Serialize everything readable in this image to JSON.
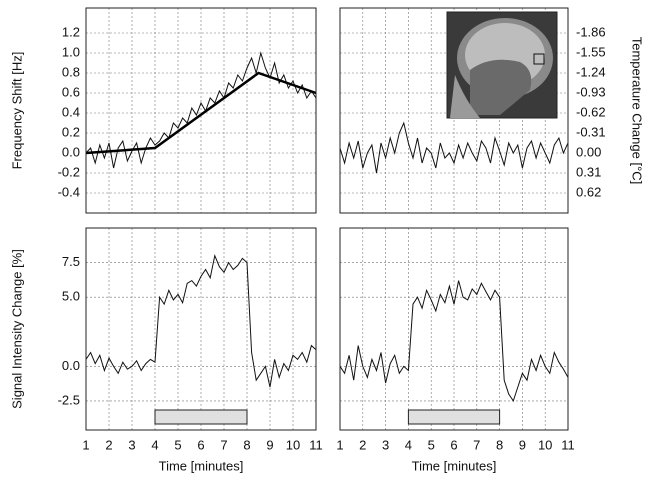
{
  "chart_data": [
    {
      "type": "line",
      "ylabel": "Frequency Shift [Hz]",
      "xtick_labels": false,
      "ytick_labels": true,
      "grid": true,
      "x": [
        1,
        1.2,
        1.4,
        1.6,
        1.8,
        2,
        2.2,
        2.4,
        2.6,
        2.8,
        3,
        3.2,
        3.4,
        3.6,
        3.8,
        4,
        4.2,
        4.4,
        4.6,
        4.8,
        5,
        5.2,
        5.4,
        5.6,
        5.8,
        6,
        6.2,
        6.4,
        6.6,
        6.8,
        7,
        7.2,
        7.4,
        7.6,
        7.8,
        8,
        8.2,
        8.4,
        8.6,
        8.8,
        9,
        9.2,
        9.4,
        9.6,
        9.8,
        10,
        10.2,
        10.4,
        10.6,
        10.8,
        11
      ],
      "series": [
        {
          "color": "#111111",
          "values": [
            0.0,
            0.05,
            -0.1,
            0.08,
            -0.05,
            0.1,
            -0.15,
            0.05,
            0.12,
            -0.08,
            0.02,
            0.1,
            -0.1,
            0.05,
            0.15,
            0.08,
            0.12,
            0.2,
            0.15,
            0.3,
            0.25,
            0.35,
            0.3,
            0.45,
            0.38,
            0.5,
            0.42,
            0.55,
            0.5,
            0.62,
            0.55,
            0.7,
            0.65,
            0.78,
            0.72,
            0.85,
            0.95,
            0.8,
            1.0,
            0.85,
            0.75,
            0.9,
            0.7,
            0.78,
            0.65,
            0.72,
            0.6,
            0.68,
            0.55,
            0.62,
            0.55
          ]
        },
        {
          "color": "#000000",
          "x": [
            1,
            4,
            8.5,
            11
          ],
          "values": [
            0,
            0.05,
            0.8,
            0.6
          ]
        }
      ],
      "xlim": [
        1,
        11
      ],
      "xticks": [
        1,
        2,
        3,
        4,
        5,
        6,
        7,
        8,
        9,
        10,
        11
      ],
      "ylim": [
        -0.6,
        1.45
      ],
      "yticks": [
        1.2,
        {
          "value": 1,
          "label": "1.0"
        },
        0.8,
        0.6,
        0.4,
        0.2,
        {
          "value": 0,
          "label": "0.0"
        },
        -0.2,
        -0.4
      ]
    },
    {
      "type": "line",
      "y2label": "Temperature Change [°C]",
      "xtick_labels": false,
      "grid": true,
      "x": [
        1,
        1.2,
        1.4,
        1.6,
        1.8,
        2,
        2.2,
        2.4,
        2.6,
        2.8,
        3,
        3.2,
        3.4,
        3.6,
        3.8,
        4,
        4.2,
        4.4,
        4.6,
        4.8,
        5,
        5.2,
        5.4,
        5.6,
        5.8,
        6,
        6.2,
        6.4,
        6.6,
        6.8,
        7,
        7.2,
        7.4,
        7.6,
        7.8,
        8,
        8.2,
        8.4,
        8.6,
        8.8,
        9,
        9.2,
        9.4,
        9.6,
        9.8,
        10,
        10.2,
        10.4,
        10.6,
        10.8,
        11
      ],
      "series": [
        {
          "color": "#111111",
          "values": [
            0.05,
            -0.1,
            0.1,
            -0.05,
            0.12,
            -0.15,
            0.0,
            0.08,
            -0.2,
            0.1,
            -0.05,
            0.15,
            0.0,
            0.2,
            0.3,
            0.1,
            -0.05,
            0.15,
            -0.1,
            0.05,
            0.0,
            -0.15,
            0.1,
            -0.05,
            0.0,
            -0.1,
            0.08,
            -0.05,
            0.1,
            0.0,
            -0.08,
            0.12,
            0.05,
            -0.1,
            0.15,
            0.02,
            -0.12,
            0.1,
            0.0,
            0.08,
            -0.15,
            0.05,
            0.12,
            -0.05,
            0.1,
            0.0,
            -0.1,
            0.08,
            0.15,
            0.0,
            0.1
          ]
        }
      ],
      "xlim": [
        1,
        11
      ],
      "xticks": [
        1,
        2,
        3,
        4,
        5,
        6,
        7,
        8,
        9,
        10,
        11
      ],
      "ylim": [
        -0.6,
        1.45
      ],
      "y2lim": [
        0.93,
        -2.2475
      ],
      "y2ticks": [
        -1.86,
        -1.55,
        -1.24,
        -0.93,
        -0.62,
        -0.31,
        {
          "value": 0,
          "label": "0.00"
        },
        0.31,
        0.62
      ]
    },
    {
      "type": "line",
      "ylabel": "Signal Intensity Change [%]",
      "xlabel": "Time [minutes]",
      "xtick_labels": true,
      "ytick_labels": true,
      "grid": true,
      "x": [
        1,
        1.2,
        1.4,
        1.6,
        1.8,
        2,
        2.2,
        2.4,
        2.6,
        2.8,
        3,
        3.2,
        3.4,
        3.6,
        3.8,
        4,
        4.2,
        4.4,
        4.6,
        4.8,
        5,
        5.2,
        5.4,
        5.6,
        5.8,
        6,
        6.2,
        6.4,
        6.6,
        6.8,
        7,
        7.2,
        7.4,
        7.6,
        7.8,
        8,
        8.2,
        8.4,
        8.6,
        8.8,
        9,
        9.2,
        9.4,
        9.6,
        9.8,
        10,
        10.2,
        10.4,
        10.6,
        10.8,
        11
      ],
      "series": [
        {
          "color": "#111111",
          "values": [
            0.5,
            1.0,
            0.2,
            0.8,
            -0.3,
            0.6,
            0.0,
            -0.5,
            0.3,
            -0.2,
            0.0,
            0.4,
            -0.3,
            0.2,
            0.5,
            0.3,
            5.0,
            4.5,
            5.5,
            4.8,
            5.2,
            4.6,
            6.0,
            6.2,
            5.8,
            6.5,
            7.0,
            6.4,
            8.0,
            7.2,
            6.8,
            7.5,
            7.0,
            7.3,
            7.8,
            7.5,
            1.0,
            -1.0,
            -0.5,
            0.0,
            -1.5,
            0.5,
            -0.8,
            0.2,
            -0.3,
            0.8,
            0.5,
            1.0,
            0.3,
            1.5,
            1.2
          ]
        }
      ],
      "stimulus": [
        4,
        8
      ],
      "stimulus_color": "#e0e0e0",
      "xlim": [
        1,
        11
      ],
      "xticks": [
        1,
        2,
        3,
        4,
        5,
        6,
        7,
        8,
        9,
        10,
        11
      ],
      "ylim": [
        -4.6,
        10
      ],
      "yticks": [
        7.5,
        {
          "value": 5,
          "label": "5.0"
        },
        {
          "value": 0,
          "label": "0.0"
        },
        -2.5
      ]
    },
    {
      "type": "line",
      "xlabel": "Time [minutes]",
      "xtick_labels": true,
      "ytick_labels": false,
      "grid": true,
      "x": [
        1,
        1.2,
        1.4,
        1.6,
        1.8,
        2,
        2.2,
        2.4,
        2.6,
        2.8,
        3,
        3.2,
        3.4,
        3.6,
        3.8,
        4,
        4.2,
        4.4,
        4.6,
        4.8,
        5,
        5.2,
        5.4,
        5.6,
        5.8,
        6,
        6.2,
        6.4,
        6.6,
        6.8,
        7,
        7.2,
        7.4,
        7.6,
        7.8,
        8,
        8.2,
        8.4,
        8.6,
        8.8,
        9,
        9.2,
        9.4,
        9.6,
        9.8,
        10,
        10.2,
        10.4,
        10.6,
        10.8,
        11
      ],
      "series": [
        {
          "color": "#111111",
          "values": [
            0.0,
            -0.5,
            0.8,
            -1.0,
            1.5,
            0.0,
            -0.8,
            0.5,
            -0.3,
            1.0,
            -1.2,
            0.2,
            0.8,
            -0.5,
            0.0,
            -0.3,
            4.5,
            5.0,
            4.2,
            5.5,
            4.8,
            4.0,
            5.2,
            4.6,
            5.8,
            4.5,
            6.2,
            5.0,
            4.8,
            5.6,
            5.2,
            6.0,
            5.4,
            4.8,
            5.5,
            5.0,
            -1.0,
            -2.0,
            -2.5,
            -1.5,
            -0.5,
            -1.0,
            0.5,
            -0.3,
            0.8,
            0.0,
            -0.5,
            1.0,
            0.3,
            -0.2,
            -0.8
          ]
        }
      ],
      "stimulus": [
        4,
        8
      ],
      "stimulus_color": "#e0e0e0",
      "xlim": [
        1,
        11
      ],
      "xticks": [
        1,
        2,
        3,
        4,
        5,
        6,
        7,
        8,
        9,
        10,
        11
      ],
      "ylim": [
        -4.6,
        10
      ],
      "yticks": [
        7.5,
        {
          "value": 5,
          "label": "5.0"
        },
        {
          "value": 0,
          "label": "0.0"
        },
        -2.5
      ]
    }
  ]
}
